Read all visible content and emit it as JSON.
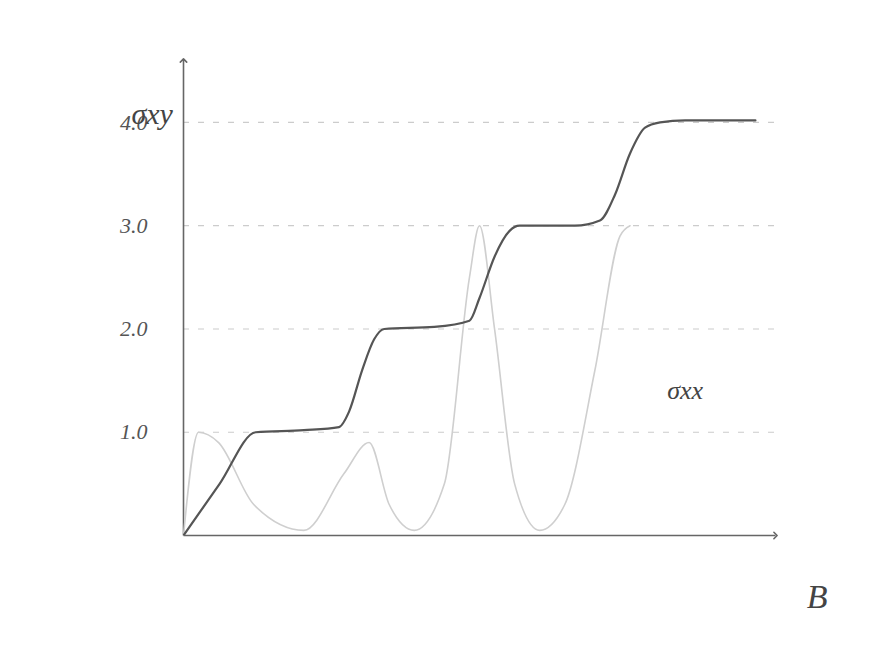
{
  "chart_data": {
    "type": "line",
    "x_label": "B",
    "y_label": "σxy",
    "series": [
      {
        "name": "σxy",
        "color": "#555555",
        "x": [
          0,
          0.36,
          0.72,
          1.2,
          1.55,
          1.65,
          1.78,
          1.9,
          2.0,
          2.5,
          2.85,
          2.95,
          3.1,
          3.25,
          3.35,
          3.9,
          4.15,
          4.3,
          4.45,
          4.6,
          4.75,
          5.0,
          5.7
        ],
        "values": [
          0,
          0.5,
          1.0,
          1.02,
          1.05,
          1.2,
          1.6,
          1.9,
          2.0,
          2.02,
          2.08,
          2.3,
          2.7,
          2.95,
          3.0,
          3.0,
          3.05,
          3.3,
          3.7,
          3.95,
          4.0,
          4.02,
          4.02
        ]
      },
      {
        "name": "σxx",
        "color": "#cfcfcf",
        "x": [
          0,
          0.15,
          0.35,
          0.7,
          1.2,
          1.6,
          1.85,
          2.05,
          2.3,
          2.6,
          2.85,
          2.95,
          3.1,
          3.3,
          3.55,
          3.8,
          4.1,
          4.35,
          4.45
        ],
        "values": [
          0,
          1.0,
          0.9,
          0.3,
          0.05,
          0.6,
          0.9,
          0.3,
          0.05,
          0.5,
          2.5,
          3.0,
          2.0,
          0.5,
          0.05,
          0.3,
          1.6,
          2.9,
          3.0
        ]
      }
    ],
    "annotations": [
      {
        "text": "σxx",
        "x": 5.0,
        "y": 1.4
      }
    ],
    "xlim": [
      0,
      5.9
    ],
    "ylim": [
      0,
      4.6
    ],
    "yticks": [
      1,
      2,
      3,
      4
    ],
    "tick_labels": "y",
    "grid": true
  }
}
